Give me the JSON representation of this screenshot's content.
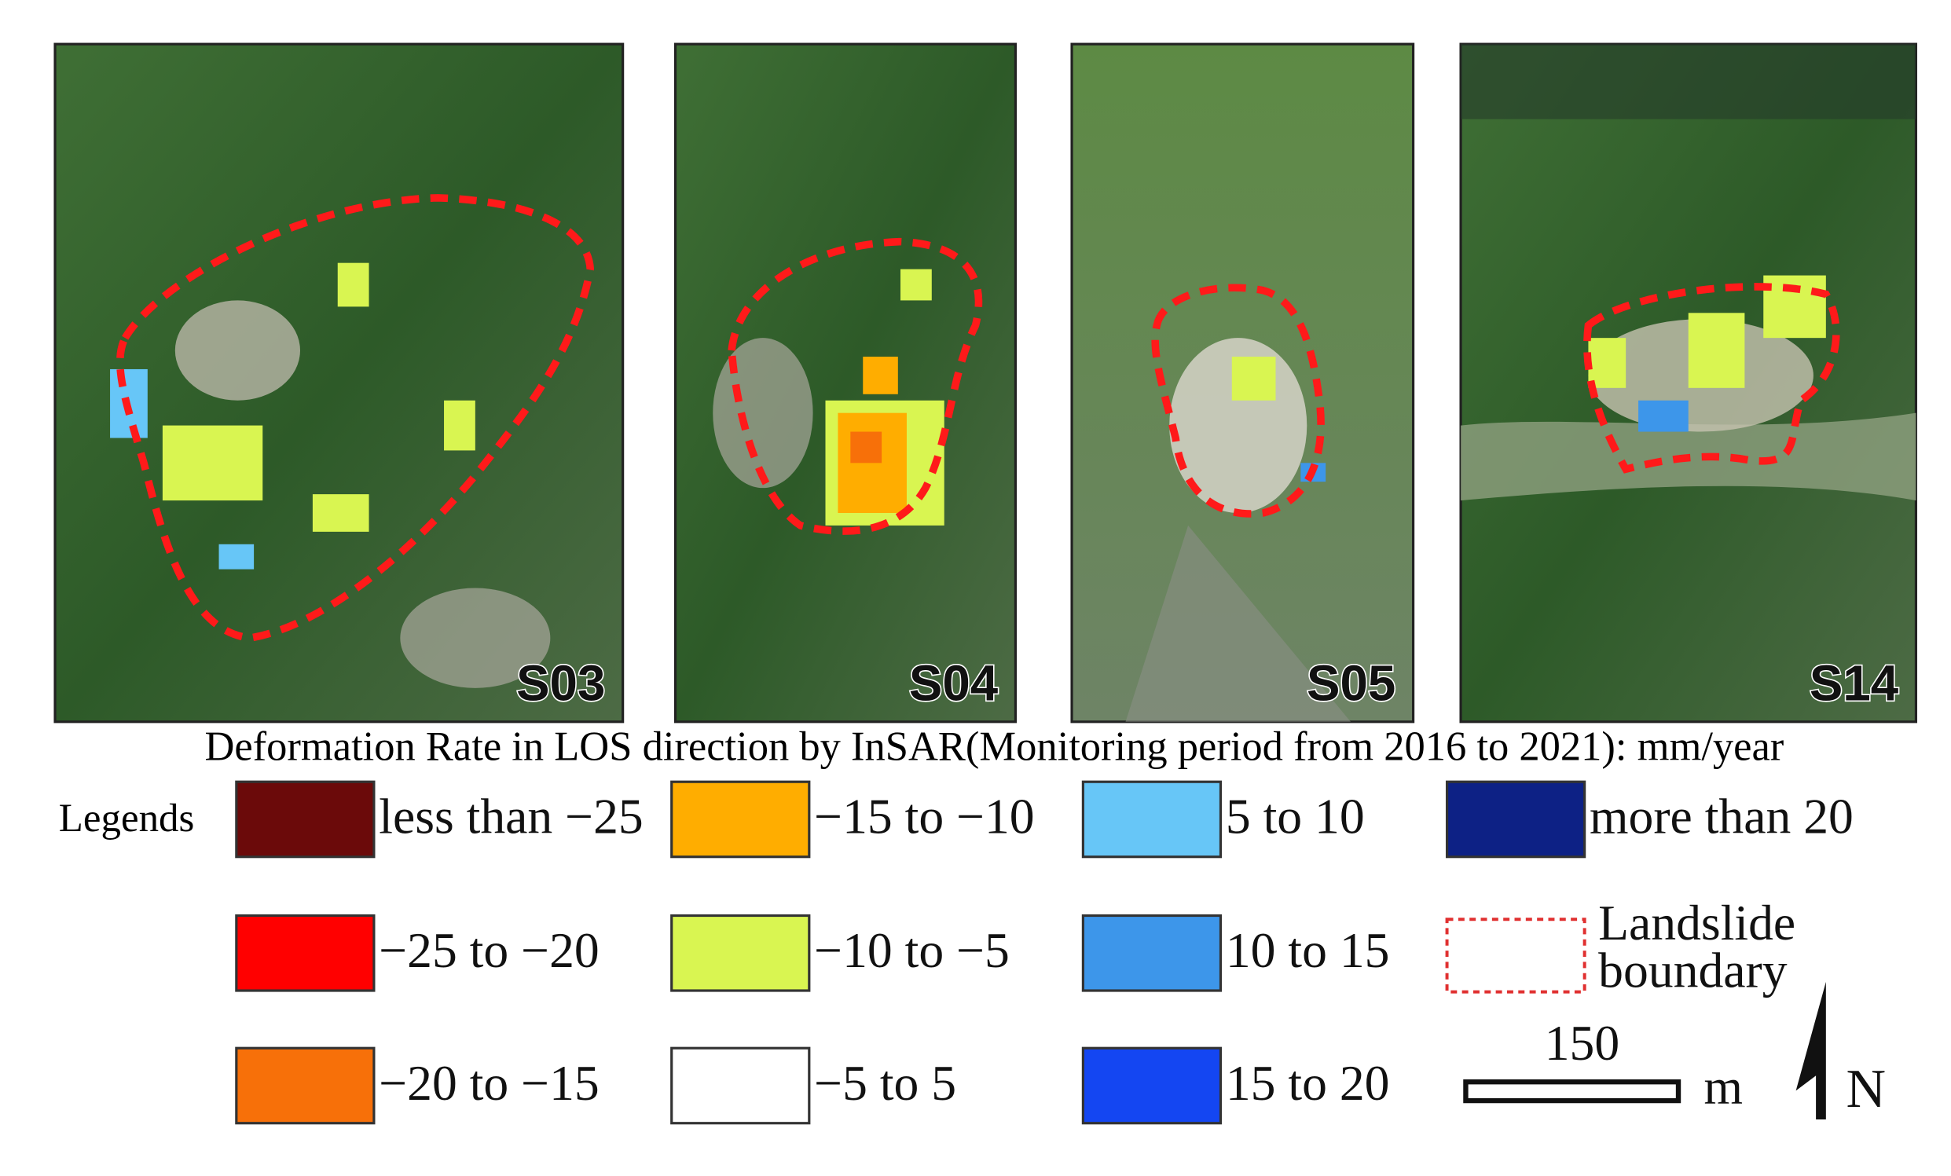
{
  "panels": [
    {
      "label": "S03"
    },
    {
      "label": "S04"
    },
    {
      "label": "S05"
    },
    {
      "label": "S14"
    }
  ],
  "caption": "Deformation Rate in LOS direction by InSAR(Monitoring period from 2016 to 2021): mm/year",
  "legend": {
    "title": "Legends",
    "items": [
      {
        "label": "less than −25",
        "color": "#6b0a0a"
      },
      {
        "label": "−25 to −20",
        "color": "#ff0000"
      },
      {
        "label": "−20 to −15",
        "color": "#f77009"
      },
      {
        "label": "−15 to −10",
        "color": "#ffad00"
      },
      {
        "label": "−10 to −5",
        "color": "#d9f551"
      },
      {
        "label": "−5 to 5",
        "color": "#ffffff"
      },
      {
        "label": "5 to 10",
        "color": "#67c6f7"
      },
      {
        "label": "10 to 15",
        "color": "#3d96ea"
      },
      {
        "label": "15 to 20",
        "color": "#1446f2"
      },
      {
        "label": "more than 20",
        "color": "#0d2185"
      }
    ],
    "boundary_lines": [
      "Landslide",
      "boundary"
    ]
  },
  "scale_bar": {
    "distance": "150",
    "unit": "m"
  },
  "north": "N"
}
